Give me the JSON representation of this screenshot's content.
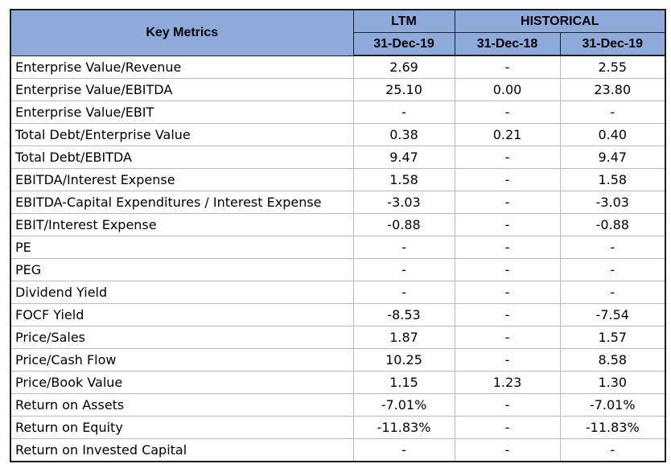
{
  "table": {
    "header": {
      "key_metrics": "Key Metrics",
      "ltm": "LTM",
      "historical": "HISTORICAL",
      "dates": [
        "31-Dec-19",
        "31-Dec-18",
        "31-Dec-19"
      ]
    },
    "rows": [
      {
        "label": "Enterprise Value/Revenue",
        "values": [
          "2.69",
          "-",
          "2.55"
        ]
      },
      {
        "label": "Enterprise Value/EBITDA",
        "values": [
          "25.10",
          "0.00",
          "23.80"
        ]
      },
      {
        "label": "Enterprise Value/EBIT",
        "values": [
          "-",
          "-",
          "-"
        ]
      },
      {
        "label": "Total Debt/Enterprise Value",
        "values": [
          "0.38",
          "0.21",
          "0.40"
        ]
      },
      {
        "label": "Total Debt/EBITDA",
        "values": [
          "9.47",
          "-",
          "9.47"
        ]
      },
      {
        "label": "EBITDA/Interest Expense",
        "values": [
          "1.58",
          "-",
          "1.58"
        ]
      },
      {
        "label": "EBITDA-Capital Expenditures / Interest Expense",
        "values": [
          "-3.03",
          "-",
          "-3.03"
        ]
      },
      {
        "label": "EBIT/Interest Expense",
        "values": [
          "-0.88",
          "-",
          "-0.88"
        ]
      },
      {
        "label": "PE",
        "values": [
          "-",
          "-",
          "-"
        ]
      },
      {
        "label": "PEG",
        "values": [
          "-",
          "-",
          "-"
        ]
      },
      {
        "label": "Dividend Yield",
        "values": [
          "-",
          "-",
          "-"
        ]
      },
      {
        "label": "FOCF Yield",
        "values": [
          "-8.53",
          "-",
          "-7.54"
        ]
      },
      {
        "label": "Price/Sales",
        "values": [
          "1.87",
          "-",
          "1.57"
        ]
      },
      {
        "label": "Price/Cash Flow",
        "values": [
          "10.25",
          "-",
          "8.58"
        ]
      },
      {
        "label": "Price/Book Value",
        "values": [
          "1.15",
          "1.23",
          "1.30"
        ]
      },
      {
        "label": "Return on Assets",
        "values": [
          "-7.01%",
          "-",
          "-7.01%"
        ]
      },
      {
        "label": "Return on Equity",
        "values": [
          "-11.83%",
          "-",
          "-11.83%"
        ]
      },
      {
        "label": "Return on Invested Capital",
        "values": [
          "-",
          "-",
          "-"
        ]
      }
    ]
  },
  "colors": {
    "header_fill": "#8eaadb",
    "grid_line": "#b7b7b7",
    "outer_border": "#1f1f1f"
  }
}
